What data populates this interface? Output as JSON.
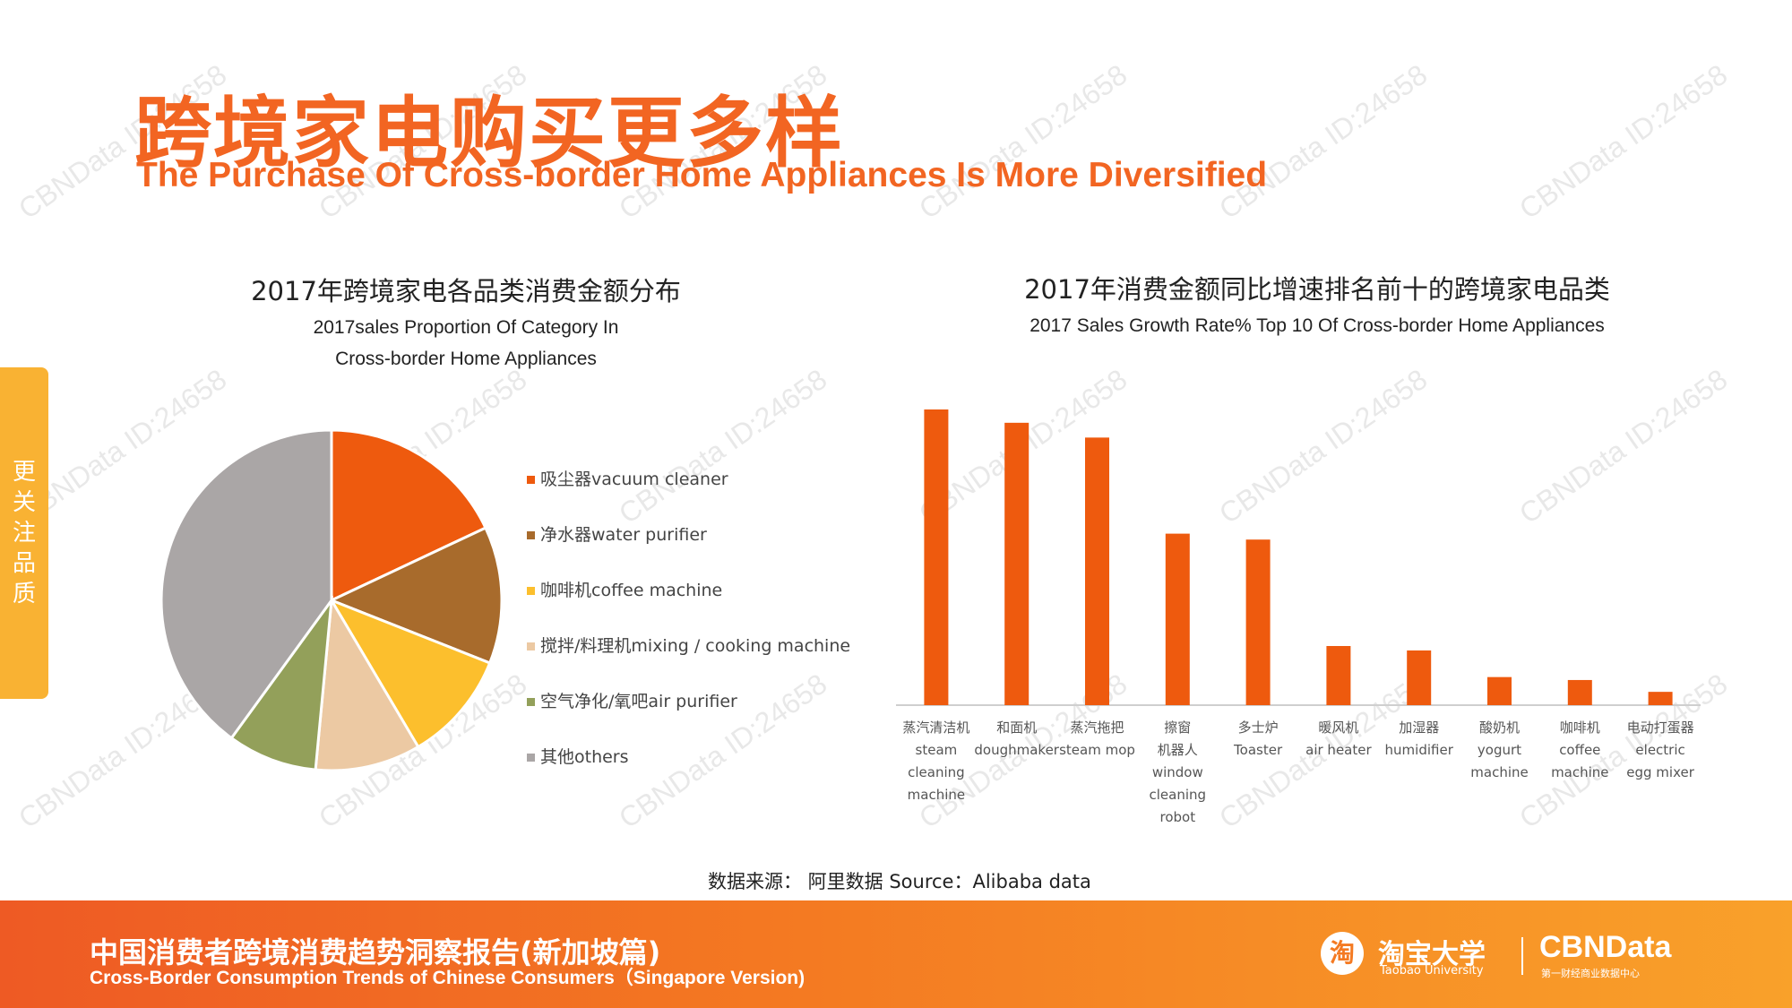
{
  "header": {
    "title_cn": "跨境家电购买更多样",
    "title_en": "The Purchase Of Cross-border Home Appliances Is More Diversified"
  },
  "side_tab": {
    "label": "更关注品质"
  },
  "colors": {
    "accent": "#f26522",
    "side_tab": "#f9b233",
    "bar": "#ee5a0e"
  },
  "chart_data": [
    {
      "type": "pie",
      "title_cn": "2017年跨境家电各品类消费金额分布",
      "title_en_line1": "2017sales Proportion Of Category In",
      "title_en_line2": "Cross-border Home Appliances",
      "legend_position": "right",
      "labels": [
        "吸尘器vacuum cleaner",
        "净水器water purifier",
        "咖啡机coffee machine",
        "搅拌/料理机mixing / cooking machine",
        "空气净化/氧吧air purifier",
        "其他others"
      ],
      "values": [
        18,
        13,
        10.5,
        10,
        8.5,
        40
      ],
      "colors": [
        "#ee5a0e",
        "#a86b2c",
        "#fcbf2d",
        "#ecc9a3",
        "#93a05a",
        "#aaa6a6"
      ]
    },
    {
      "type": "bar",
      "title_cn": "2017年消费金额同比增速排名前十的跨境家电品类",
      "title_en": "2017 Sales Growth Rate% Top 10 Of Cross-border Home Appliances",
      "categories": [
        {
          "cn": "蒸汽清洁机",
          "en": [
            "steam",
            "cleaning",
            "machine"
          ]
        },
        {
          "cn": "和面机",
          "en": [
            "doughmaker"
          ]
        },
        {
          "cn": "蒸汽拖把",
          "en": [
            "steam mop"
          ]
        },
        {
          "cn": "擦窗",
          "en": [
            "机器人",
            "window",
            "cleaning",
            "robot"
          ]
        },
        {
          "cn": "多士炉",
          "en": [
            "Toaster"
          ]
        },
        {
          "cn": "暖风机",
          "en": [
            "air heater"
          ]
        },
        {
          "cn": "加湿器",
          "en": [
            "humidifier"
          ]
        },
        {
          "cn": "酸奶机",
          "en": [
            "yogurt",
            "machine"
          ]
        },
        {
          "cn": "咖啡机",
          "en": [
            "coffee",
            "machine"
          ]
        },
        {
          "cn": "电动打蛋器",
          "en": [
            "electric",
            "egg mixer"
          ]
        }
      ],
      "values": [
        100,
        95.5,
        90.5,
        58,
        56,
        20,
        18.5,
        9.5,
        8.5,
        4.5
      ],
      "ylim": [
        0,
        100
      ]
    }
  ],
  "source": "数据来源： 阿里数据  Source：Alibaba data",
  "footer": {
    "title_cn": "中国消费者跨境消费趋势洞察报告(新加坡篇)",
    "title_en": "Cross-Border Consumption Trends of Chinese Consumers（Singapore Version)",
    "logo_taobao_icon": "淘",
    "logo_taobao_cn": "淘宝大学",
    "logo_taobao_en": "Taobao University",
    "logo_cbn": "CBNData",
    "logo_cbn_sub": "第一财经商业数据中心"
  },
  "watermark": "CBNData ID:24658"
}
